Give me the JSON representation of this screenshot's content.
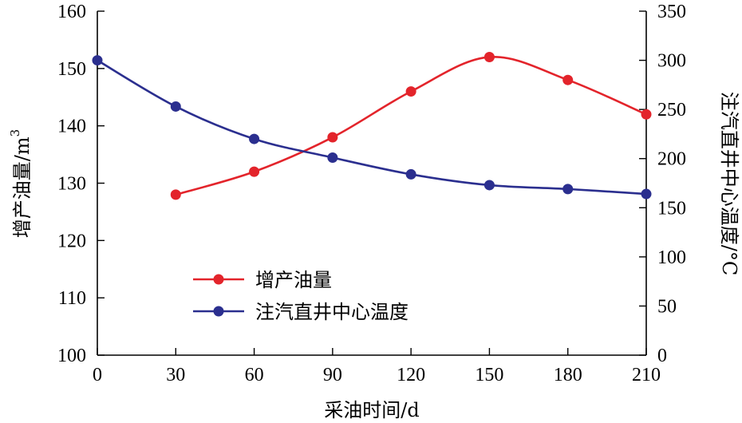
{
  "chart_data": {
    "type": "line",
    "xlabel": "采油时间/d",
    "ylabel_left": "增产油量/m",
    "ylabel_left_sup": "3",
    "ylabel_right": "注汽直井中心温度/°C",
    "xlim": [
      0,
      210
    ],
    "ylim_left": [
      100,
      160
    ],
    "ylim_right": [
      0,
      350
    ],
    "x_ticks": [
      0,
      30,
      60,
      90,
      120,
      150,
      180,
      210
    ],
    "y_left_ticks": [
      100,
      110,
      120,
      130,
      140,
      150,
      160
    ],
    "y_right_ticks": [
      0,
      50,
      100,
      150,
      200,
      250,
      300,
      350
    ],
    "grid": false,
    "legend_position": "lower-left",
    "series": [
      {
        "name": "增产油量",
        "axis": "left",
        "color": "#e3242b",
        "x": [
          30,
          60,
          90,
          120,
          150,
          180,
          210
        ],
        "y": [
          128,
          132,
          138,
          146,
          152,
          148,
          142
        ]
      },
      {
        "name": "注汽直井中心温度",
        "axis": "right",
        "color": "#2b2f8f",
        "x": [
          0,
          30,
          60,
          90,
          120,
          150,
          180,
          210
        ],
        "y": [
          300,
          253,
          220,
          201,
          184,
          173,
          169,
          164
        ]
      }
    ]
  }
}
